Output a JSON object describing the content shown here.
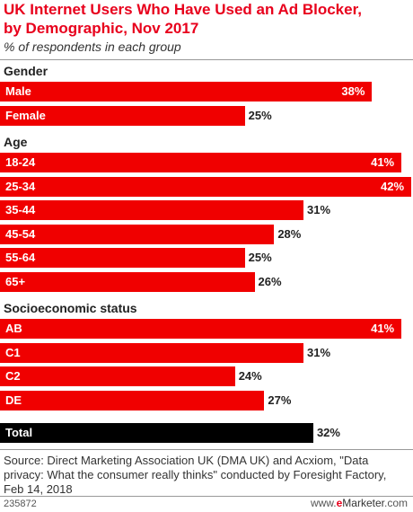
{
  "header": {
    "title_line1": "UK Internet Users Who Have Used an Ad Blocker,",
    "title_line2": "by Demographic, Nov 2017",
    "subtitle": "% of respondents in each group"
  },
  "chart_data": {
    "type": "bar",
    "orientation": "horizontal",
    "unit": "%",
    "xlim": [
      0,
      42
    ],
    "groups": [
      {
        "label": "Gender",
        "bars": [
          {
            "label": "Male",
            "value": 38
          },
          {
            "label": "Female",
            "value": 25
          }
        ]
      },
      {
        "label": "Age",
        "bars": [
          {
            "label": "18-24",
            "value": 41
          },
          {
            "label": "25-34",
            "value": 42
          },
          {
            "label": "35-44",
            "value": 31
          },
          {
            "label": "45-54",
            "value": 28
          },
          {
            "label": "55-64",
            "value": 25
          },
          {
            "label": "65+",
            "value": 26
          }
        ]
      },
      {
        "label": "Socioeconomic status",
        "bars": [
          {
            "label": "AB",
            "value": 41
          },
          {
            "label": "C1",
            "value": 31
          },
          {
            "label": "C2",
            "value": 24
          },
          {
            "label": "DE",
            "value": 27
          }
        ]
      },
      {
        "label": "",
        "bars": [
          {
            "label": "Total",
            "value": 32,
            "total": true
          }
        ]
      }
    ],
    "colors": {
      "bar": "#f00000",
      "total_bar": "#000000"
    }
  },
  "footer": {
    "source": "Source: Direct Marketing Association UK (DMA UK) and Acxiom, \"Data privacy: What the consumer really thinks\" conducted by Foresight Factory, Feb 14, 2018",
    "chart_id": "235872",
    "site_brand": "e",
    "site_rest": "Marketer",
    "site_domain": "www.",
    "site_tld": ".com"
  }
}
